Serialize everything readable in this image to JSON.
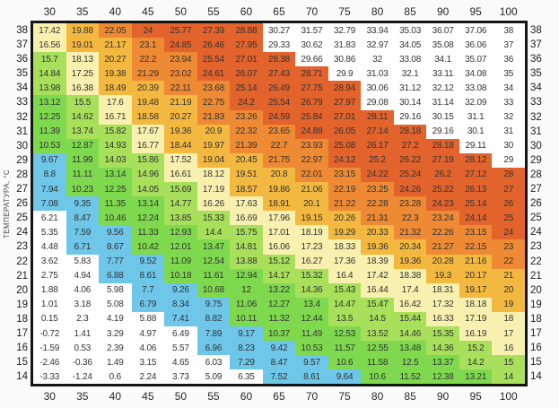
{
  "chart_data": {
    "type": "heatmap",
    "y_axis": {
      "label": "ТЕМПЕРАТУРА, °С"
    },
    "x": [
      30,
      35,
      40,
      45,
      50,
      55,
      60,
      65,
      70,
      75,
      80,
      85,
      90,
      95,
      100
    ],
    "y": [
      38,
      37,
      36,
      35,
      34,
      33,
      32,
      31,
      30,
      29,
      28,
      27,
      26,
      25,
      24,
      23,
      22,
      21,
      20,
      19,
      18,
      17,
      16,
      15,
      14
    ],
    "values": [
      [
        17.42,
        19.88,
        22.05,
        24,
        25.77,
        27.39,
        28.88,
        30.27,
        31.57,
        32.79,
        33.94,
        35.03,
        36.07,
        37.06,
        38
      ],
      [
        16.56,
        19.01,
        21.17,
        23.1,
        24.85,
        26.46,
        27.95,
        29.33,
        30.62,
        31.83,
        32.97,
        34.05,
        35.08,
        36.06,
        37
      ],
      [
        15.7,
        18.13,
        20.27,
        22.2,
        23.94,
        25.54,
        27.01,
        28.38,
        29.66,
        30.86,
        32,
        33.08,
        34.1,
        35.07,
        36
      ],
      [
        14.84,
        17.25,
        19.38,
        21.29,
        23.02,
        24.61,
        26.07,
        27.43,
        28.71,
        29.9,
        31.03,
        32.1,
        33.11,
        34.08,
        35
      ],
      [
        13.98,
        16.38,
        18.49,
        20.39,
        22.11,
        23.68,
        25.14,
        26.49,
        27.75,
        28.94,
        30.06,
        31.12,
        32.12,
        33.08,
        34
      ],
      [
        13.12,
        15.5,
        17.6,
        19.48,
        21.19,
        22.75,
        24.2,
        25.54,
        26.79,
        27.97,
        29.08,
        30.14,
        31.14,
        32.09,
        33
      ],
      [
        12.25,
        14.62,
        16.71,
        18.58,
        20.27,
        21.83,
        23.26,
        24.59,
        25.84,
        27.01,
        28.11,
        29.16,
        30.15,
        31.1,
        32
      ],
      [
        11.39,
        13.74,
        15.82,
        17.67,
        19.36,
        20.9,
        22.32,
        23.65,
        24.88,
        26.05,
        27.14,
        28.18,
        29.16,
        30.1,
        31
      ],
      [
        10.53,
        12.87,
        14.93,
        16.77,
        18.44,
        19.97,
        21.39,
        22.7,
        23.93,
        25.08,
        26.17,
        27.2,
        28.18,
        29.11,
        30
      ],
      [
        9.67,
        11.99,
        14.03,
        15.86,
        17.52,
        19.04,
        20.45,
        21.75,
        22.97,
        24.12,
        25.2,
        26.22,
        27.19,
        28.12,
        29
      ],
      [
        8.8,
        11.11,
        13.14,
        14.96,
        16.61,
        18.12,
        19.51,
        20.8,
        22.01,
        23.15,
        24.22,
        25.24,
        26.2,
        27.12,
        28
      ],
      [
        7.94,
        10.23,
        12.25,
        14.05,
        15.69,
        17.19,
        18.57,
        19.86,
        21.06,
        22.19,
        23.25,
        24.26,
        25.22,
        26.13,
        27
      ],
      [
        7.08,
        9.35,
        11.35,
        13.14,
        14.77,
        16.26,
        17.63,
        18.91,
        20.1,
        21.22,
        22.28,
        23.28,
        24.23,
        25.14,
        26
      ],
      [
        6.21,
        8.47,
        10.46,
        12.24,
        13.85,
        15.33,
        16.69,
        17.96,
        19.15,
        20.26,
        21.31,
        22.3,
        23.24,
        24.14,
        25
      ],
      [
        5.35,
        7.59,
        9.56,
        11.33,
        12.93,
        14.4,
        15.75,
        17.01,
        18.19,
        19.29,
        20.33,
        21.32,
        22.26,
        23.15,
        24
      ],
      [
        4.48,
        6.71,
        8.67,
        10.42,
        12.01,
        13.47,
        14.81,
        16.06,
        17.23,
        18.33,
        19.36,
        20.34,
        21.27,
        22.15,
        23
      ],
      [
        3.62,
        5.83,
        7.77,
        9.52,
        11.09,
        12.54,
        13.88,
        15.12,
        16.27,
        17.36,
        18.39,
        19.36,
        20.28,
        21.16,
        22
      ],
      [
        2.75,
        4.94,
        6.88,
        8.61,
        10.18,
        11.61,
        12.94,
        14.17,
        15.32,
        16.4,
        17.42,
        18.38,
        19.3,
        20.17,
        21
      ],
      [
        1.88,
        4.06,
        5.98,
        7.7,
        9.26,
        10.68,
        12,
        13.22,
        14.36,
        15.43,
        16.44,
        17.4,
        18.31,
        19.17,
        20
      ],
      [
        1.01,
        3.18,
        5.08,
        6.79,
        8.34,
        9.75,
        11.06,
        12.27,
        13.4,
        14.47,
        15.47,
        16.42,
        17.32,
        18.18,
        19
      ],
      [
        0.15,
        2.3,
        4.19,
        5.88,
        7.41,
        8.82,
        10.11,
        11.32,
        12.44,
        13.5,
        14.5,
        15.44,
        16.33,
        17.19,
        18
      ],
      [
        -0.72,
        1.41,
        3.29,
        4.97,
        6.49,
        7.89,
        9.17,
        10.37,
        11.49,
        12.53,
        13.52,
        14.46,
        15.35,
        16.19,
        17
      ],
      [
        -1.59,
        0.53,
        2.39,
        4.06,
        5.57,
        6.96,
        8.23,
        9.42,
        10.53,
        11.57,
        12.55,
        13.48,
        14.36,
        15.2,
        16
      ],
      [
        -2.46,
        -0.36,
        1.49,
        3.15,
        4.65,
        6.03,
        7.29,
        8.47,
        9.57,
        10.6,
        11.58,
        12.5,
        13.37,
        14.2,
        15
      ],
      [
        -3.33,
        -1.24,
        0.6,
        2.24,
        3.73,
        5.09,
        6.35,
        7.52,
        8.61,
        9.64,
        10.6,
        11.52,
        12.38,
        13.21,
        14
      ]
    ],
    "color_bands": [
      {
        "upper": 6.6,
        "color": "#ffffff"
      },
      {
        "upper": 10.0,
        "color": "#6ec6e9"
      },
      {
        "upper": 13.5,
        "color": "#7fd94e"
      },
      {
        "upper": 16.0,
        "color": "#a8df5b"
      },
      {
        "upper": 18.4,
        "color": "#f8f0ae"
      },
      {
        "upper": 21.2,
        "color": "#f3b83f"
      },
      {
        "upper": 24.0,
        "color": "#ee8a33"
      },
      {
        "upper": 28.95,
        "color": "#e2632c"
      },
      {
        "upper": 9999,
        "color": "#ffffff"
      }
    ],
    "text_color": "#333333",
    "frame_color": "#141414",
    "layout": {
      "grid": "off",
      "legend": "none"
    }
  }
}
